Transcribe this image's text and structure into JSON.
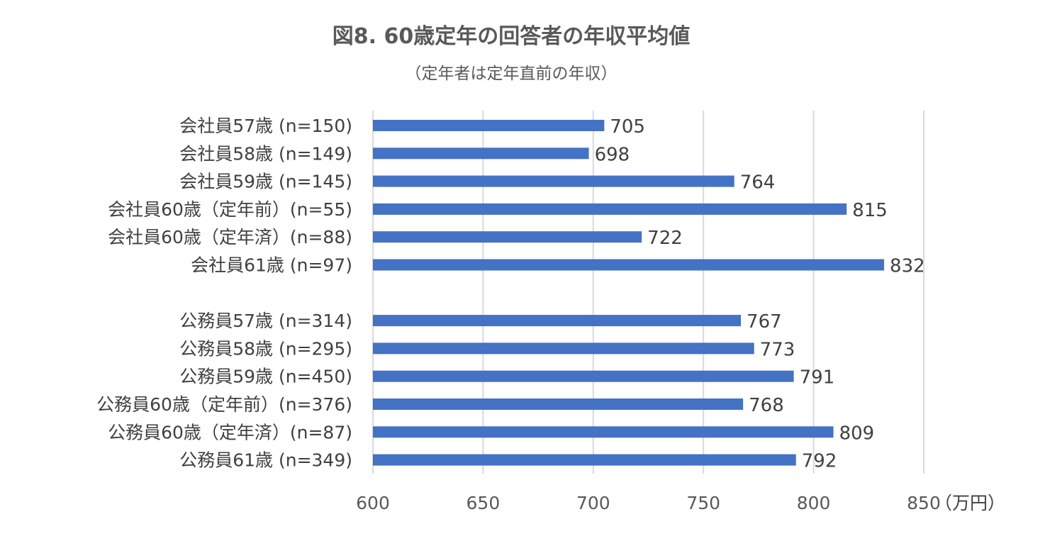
{
  "chart_data": {
    "type": "bar",
    "orientation": "horizontal",
    "title": "図8. 60歳定年の回答者の年収平均値",
    "subtitle": "（定年者は定年直前の年収）",
    "unit_label": "（万円）",
    "categories": [
      "会社員57歳 (n=150)",
      "会社員58歳 (n=149)",
      "会社員59歳 (n=145)",
      "会社員60歳（定年前）(n=55)",
      "会社員60歳（定年済）(n=88)",
      "会社員61歳 (n=97)",
      "公務員57歳 (n=314)",
      "公務員58歳 (n=295)",
      "公務員59歳 (n=450)",
      "公務員60歳（定年前）(n=376)",
      "公務員60歳（定年済）(n=87)",
      "公務員61歳 (n=349)"
    ],
    "values": [
      705,
      698,
      764,
      815,
      722,
      832,
      767,
      773,
      791,
      768,
      809,
      792
    ],
    "xlim": [
      600,
      850
    ],
    "x_ticks": [
      600,
      650,
      700,
      750,
      800,
      850
    ],
    "grid": true,
    "bar_color": "#4472C4",
    "grid_color": "#D9D9D9"
  }
}
